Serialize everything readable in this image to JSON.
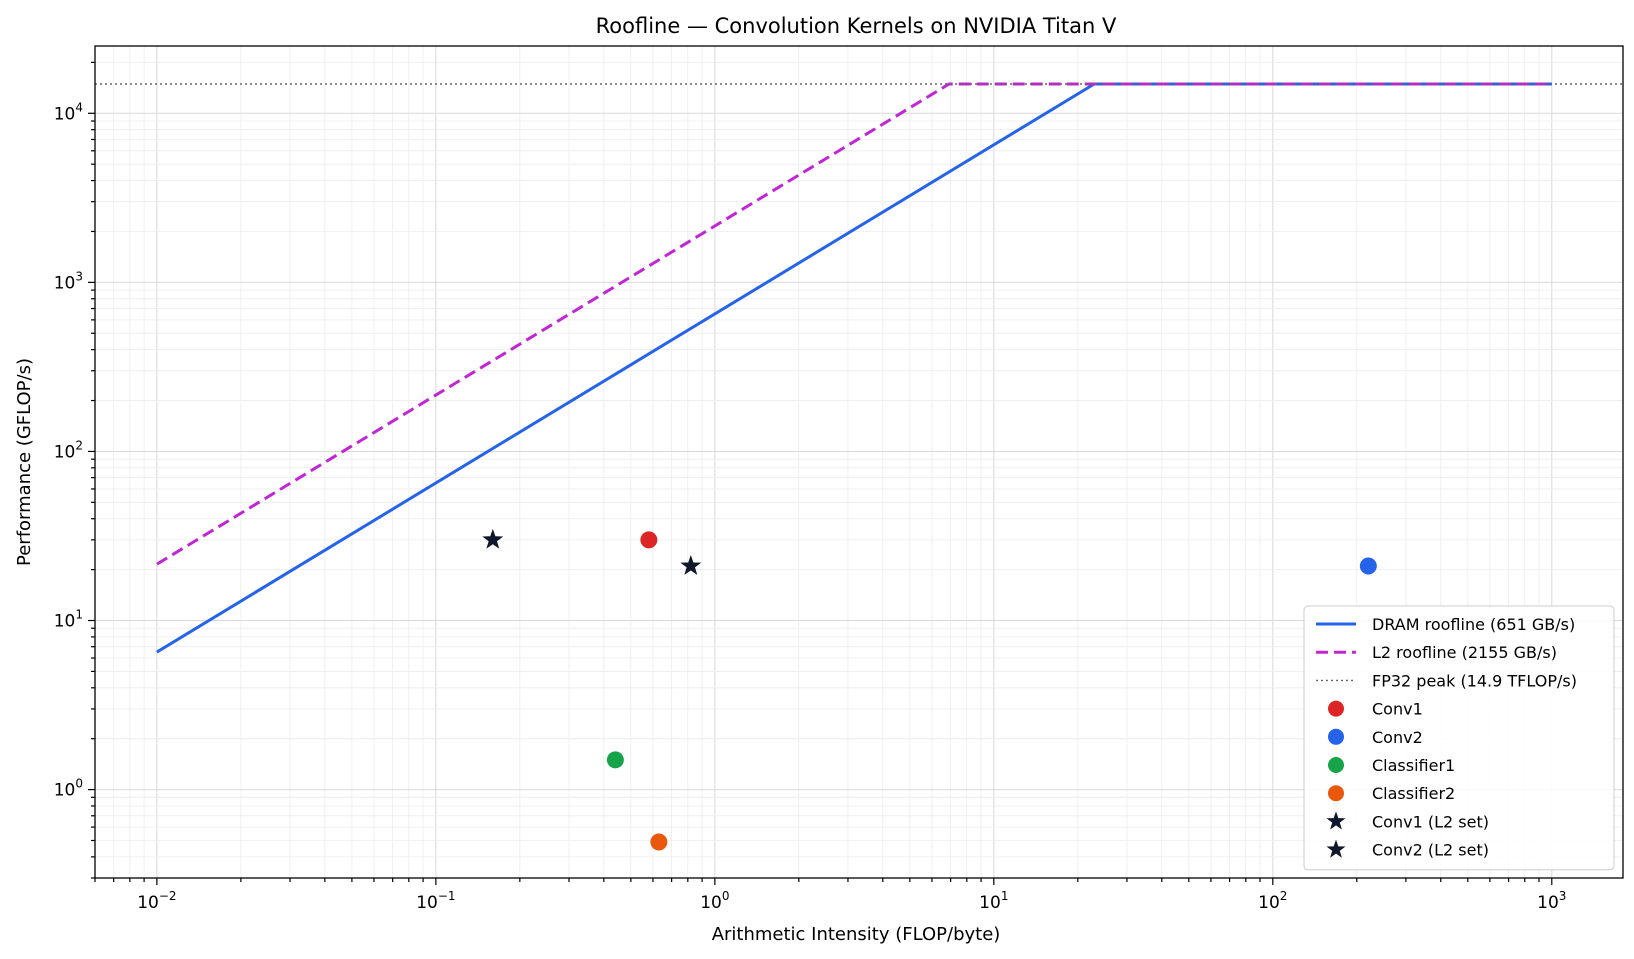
{
  "chart_data": {
    "type": "scatter",
    "title": "Roofline — Convolution Kernels on NVIDIA Titan V",
    "xlabel": "Arithmetic Intensity (FLOP/byte)",
    "ylabel": "Performance (GFLOP/s)",
    "xscale": "log",
    "yscale": "log",
    "xlim": [
      0.006,
      1800
    ],
    "ylim": [
      0.3,
      25000
    ],
    "x_ticks": [
      {
        "base": "10",
        "exp": "−2",
        "value": 0.01
      },
      {
        "base": "10",
        "exp": "−1",
        "value": 0.1
      },
      {
        "base": "10",
        "exp": "0",
        "value": 1
      },
      {
        "base": "10",
        "exp": "1",
        "value": 10
      },
      {
        "base": "10",
        "exp": "2",
        "value": 100
      },
      {
        "base": "10",
        "exp": "3",
        "value": 1000
      }
    ],
    "y_ticks": [
      {
        "base": "10",
        "exp": "0",
        "value": 1
      },
      {
        "base": "10",
        "exp": "1",
        "value": 10
      },
      {
        "base": "10",
        "exp": "2",
        "value": 100
      },
      {
        "base": "10",
        "exp": "3",
        "value": 1000
      },
      {
        "base": "10",
        "exp": "4",
        "value": 10000
      }
    ],
    "grid": true,
    "legend_position": "bottom-right",
    "lines": [
      {
        "name": "DRAM roofline (651 GB/s)",
        "color": "#2563eb",
        "style": "solid",
        "points": [
          [
            0.01,
            6.51
          ],
          [
            22.9,
            14900
          ],
          [
            1000,
            14900
          ]
        ]
      },
      {
        "name": "L2 roofline (2155 GB/s)",
        "color": "#c026d3",
        "style": "dashed",
        "points": [
          [
            0.01,
            21.55
          ],
          [
            6.91,
            14900
          ],
          [
            1000,
            14900
          ]
        ]
      },
      {
        "name": "FP32 peak (14.9 TFLOP/s)",
        "color": "#666666",
        "style": "dotted",
        "points": [
          [
            0.006,
            14900
          ],
          [
            1800,
            14900
          ]
        ]
      }
    ],
    "points": [
      {
        "name": "Conv1",
        "x": 0.58,
        "y": 30,
        "color": "#dc2626",
        "marker": "circle"
      },
      {
        "name": "Conv2",
        "x": 220,
        "y": 21,
        "color": "#2563eb",
        "marker": "circle"
      },
      {
        "name": "Classifier1",
        "x": 0.44,
        "y": 1.5,
        "color": "#16a34a",
        "marker": "circle"
      },
      {
        "name": "Classifier2",
        "x": 0.63,
        "y": 0.49,
        "color": "#ea580c",
        "marker": "circle"
      },
      {
        "name": "Conv1 (L2 set)",
        "x": 0.16,
        "y": 30,
        "color": "#0f172a",
        "marker": "star"
      },
      {
        "name": "Conv2 (L2 set)",
        "x": 0.82,
        "y": 21,
        "color": "#0f172a",
        "marker": "star"
      }
    ]
  }
}
